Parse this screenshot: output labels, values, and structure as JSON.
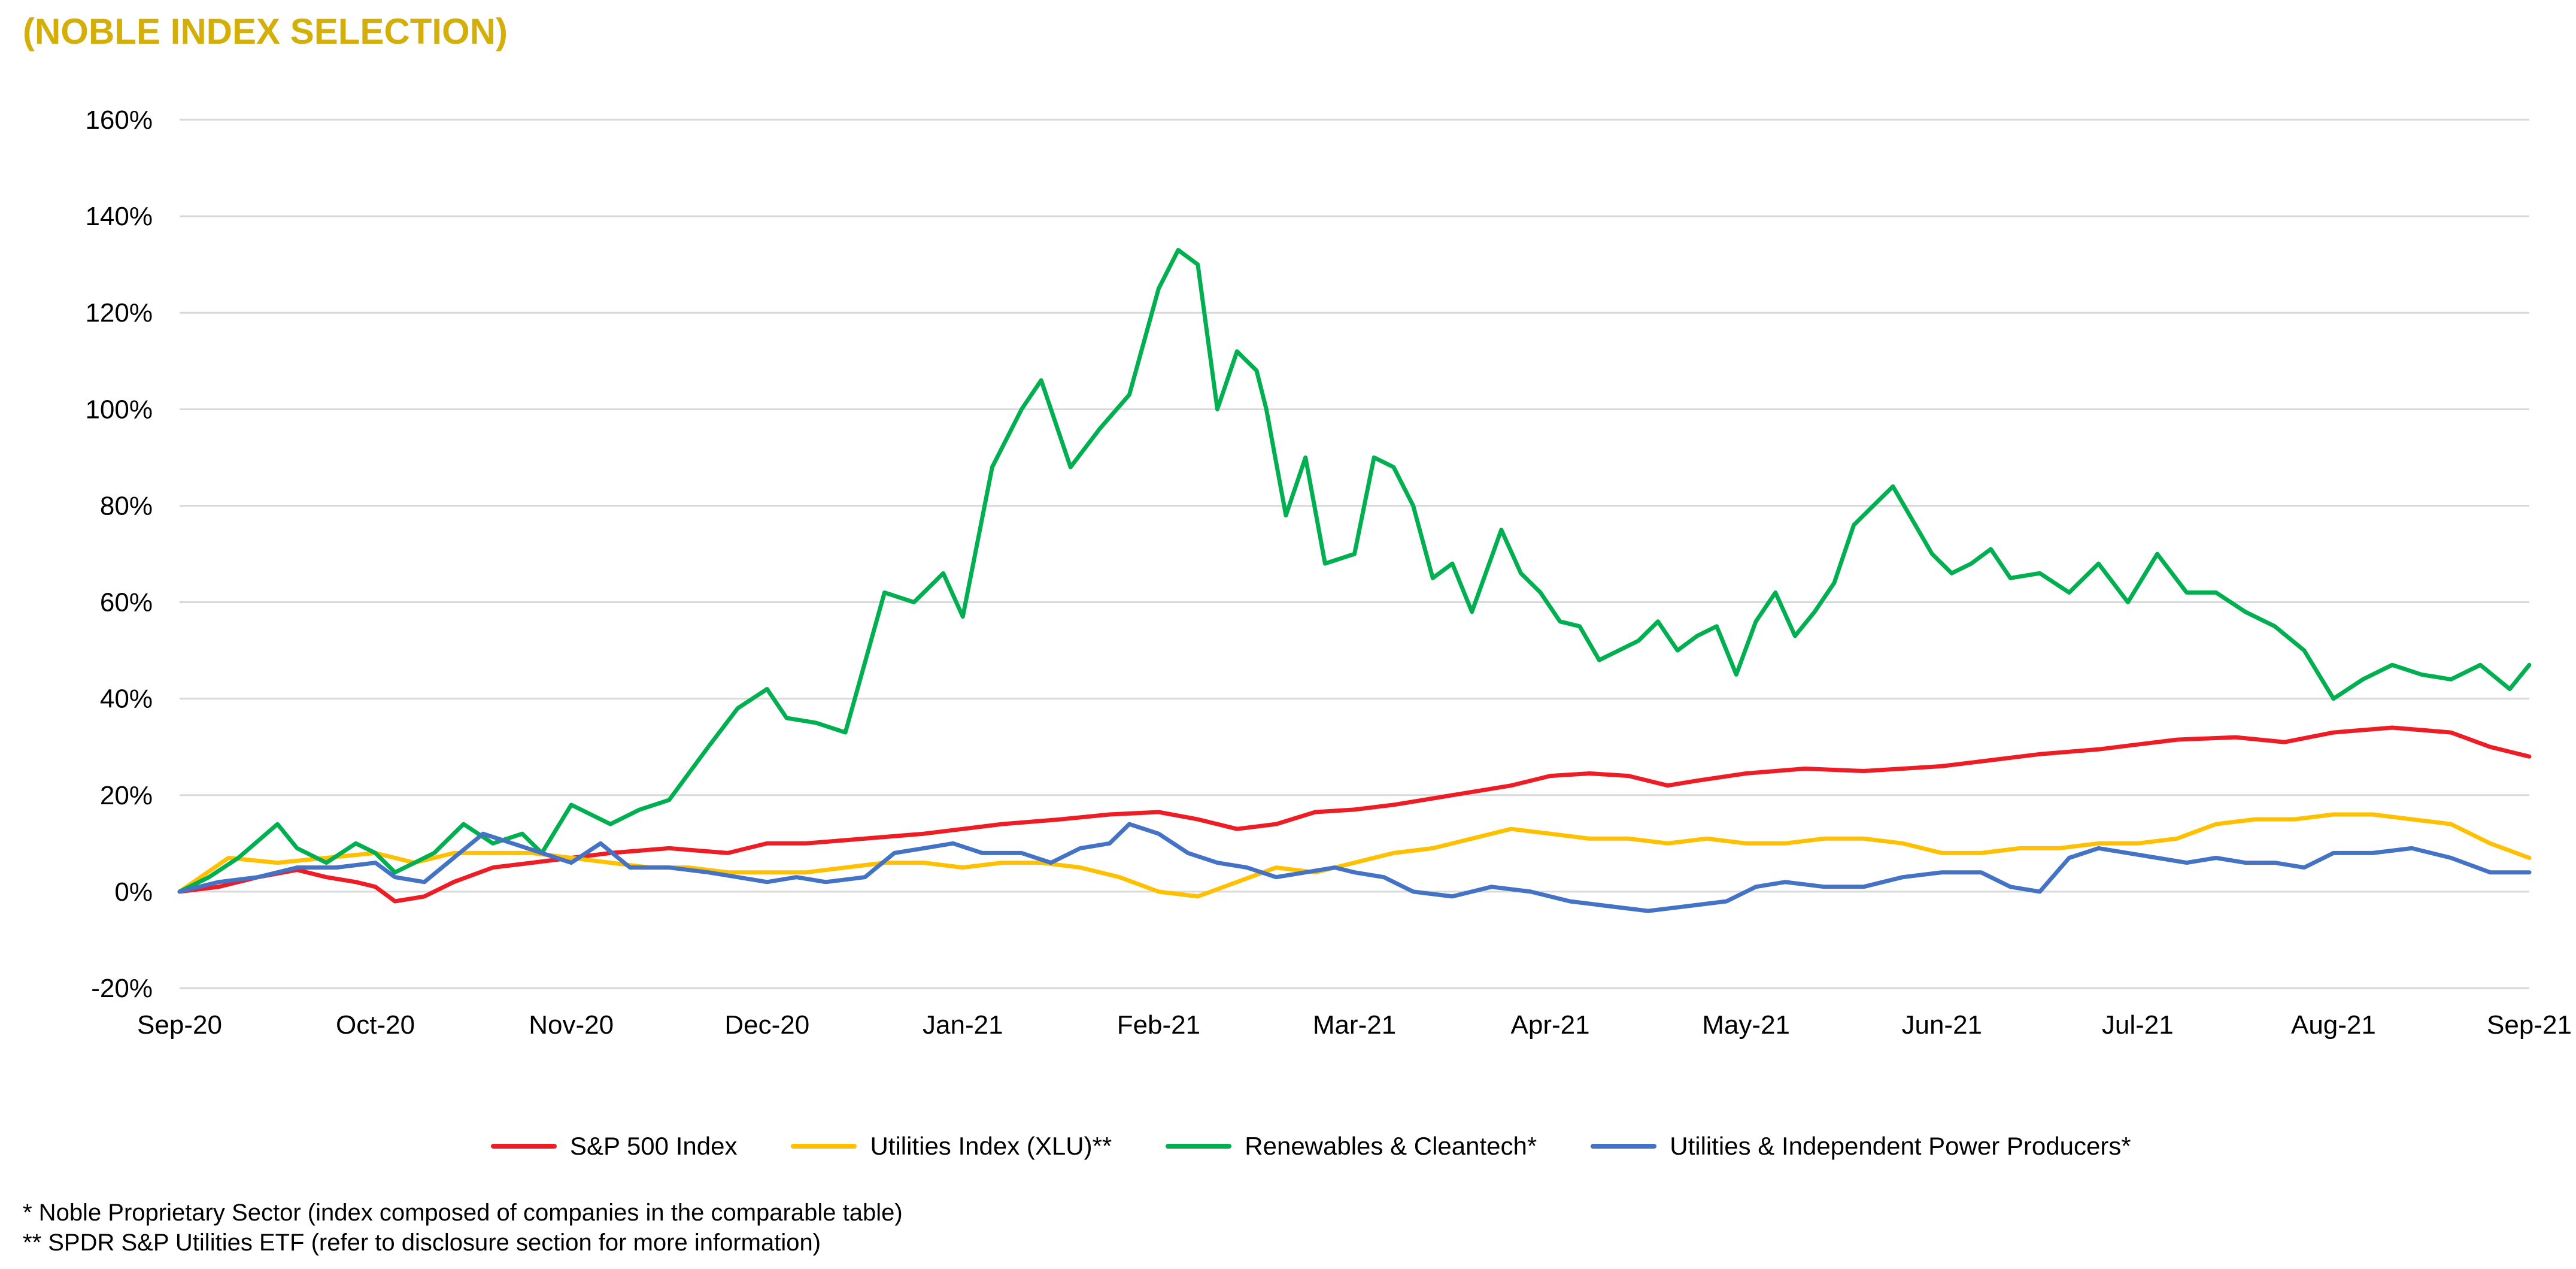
{
  "page": {
    "title": "(NOBLE INDEX SELECTION)",
    "footnotes": [
      "* Noble Proprietary Sector (index composed of companies in the comparable table)",
      "** SPDR S&P Utilities ETF (refer to disclosure section for more information)"
    ]
  },
  "colors": {
    "title": "#D4AF0A",
    "sp500": "#EE1C25",
    "xlu": "#FFC000",
    "renewables": "#00B050",
    "ipp": "#4472C4",
    "grid": "#D9D9D9"
  },
  "chart_data": {
    "type": "line",
    "title": "",
    "xlabel": "",
    "ylabel": "",
    "ylim": [
      -20,
      160
    ],
    "yticks": [
      -20,
      0,
      20,
      40,
      60,
      80,
      100,
      120,
      140,
      160
    ],
    "ytick_labels": [
      "-20%",
      "0%",
      "20%",
      "40%",
      "60%",
      "80%",
      "100%",
      "120%",
      "140%",
      "160%"
    ],
    "x_unit": "months since Sep-20 (Sep-20 = 0)",
    "xlim": [
      0,
      12
    ],
    "xticks": [
      0,
      1,
      2,
      3,
      4,
      5,
      6,
      7,
      8,
      9,
      10,
      11,
      12
    ],
    "xtick_labels": [
      "Sep-20",
      "Oct-20",
      "Nov-20",
      "Dec-20",
      "Jan-21",
      "Feb-21",
      "Mar-21",
      "Apr-21",
      "May-21",
      "Jun-21",
      "Jul-21",
      "Aug-21",
      "Sep-21"
    ],
    "grid": "horizontal",
    "legend_position": "bottom",
    "series": [
      {
        "name": "S&P 500 Index",
        "color_key": "sp500",
        "points": [
          [
            0,
            0
          ],
          [
            0.2,
            1
          ],
          [
            0.4,
            3
          ],
          [
            0.6,
            4.5
          ],
          [
            0.75,
            3
          ],
          [
            0.9,
            2
          ],
          [
            1,
            1
          ],
          [
            1.1,
            -2
          ],
          [
            1.25,
            -1
          ],
          [
            1.4,
            2
          ],
          [
            1.6,
            5
          ],
          [
            1.8,
            6
          ],
          [
            2,
            7
          ],
          [
            2.2,
            8
          ],
          [
            2.5,
            9
          ],
          [
            2.8,
            8
          ],
          [
            3,
            10
          ],
          [
            3.2,
            10
          ],
          [
            3.5,
            11
          ],
          [
            3.8,
            12
          ],
          [
            4,
            13
          ],
          [
            4.2,
            14
          ],
          [
            4.5,
            15
          ],
          [
            4.75,
            16
          ],
          [
            5,
            16.5
          ],
          [
            5.2,
            15
          ],
          [
            5.4,
            13
          ],
          [
            5.6,
            14
          ],
          [
            5.8,
            16.5
          ],
          [
            6,
            17
          ],
          [
            6.2,
            18
          ],
          [
            6.5,
            20
          ],
          [
            6.8,
            22
          ],
          [
            7,
            24
          ],
          [
            7.2,
            24.5
          ],
          [
            7.4,
            24
          ],
          [
            7.6,
            22
          ],
          [
            7.75,
            23
          ],
          [
            8,
            24.5
          ],
          [
            8.3,
            25.5
          ],
          [
            8.6,
            25
          ],
          [
            8.8,
            25.5
          ],
          [
            9,
            26
          ],
          [
            9.2,
            27
          ],
          [
            9.5,
            28.5
          ],
          [
            9.8,
            29.5
          ],
          [
            10,
            30.5
          ],
          [
            10.2,
            31.5
          ],
          [
            10.5,
            32
          ],
          [
            10.75,
            31
          ],
          [
            11,
            33
          ],
          [
            11.3,
            34
          ],
          [
            11.6,
            33
          ],
          [
            11.8,
            30
          ],
          [
            12,
            28
          ]
        ]
      },
      {
        "name": "Utilities Index (XLU)**",
        "color_key": "xlu",
        "points": [
          [
            0,
            0
          ],
          [
            0.25,
            7
          ],
          [
            0.5,
            6
          ],
          [
            0.75,
            7
          ],
          [
            1,
            8
          ],
          [
            1.2,
            6
          ],
          [
            1.4,
            8
          ],
          [
            1.6,
            8
          ],
          [
            1.8,
            8
          ],
          [
            2,
            7
          ],
          [
            2.2,
            6
          ],
          [
            2.4,
            5
          ],
          [
            2.6,
            5
          ],
          [
            2.8,
            4
          ],
          [
            3,
            4
          ],
          [
            3.2,
            4
          ],
          [
            3.4,
            5
          ],
          [
            3.6,
            6
          ],
          [
            3.8,
            6
          ],
          [
            4,
            5
          ],
          [
            4.2,
            6
          ],
          [
            4.4,
            6
          ],
          [
            4.6,
            5
          ],
          [
            4.8,
            3
          ],
          [
            5,
            0
          ],
          [
            5.2,
            -1
          ],
          [
            5.4,
            2
          ],
          [
            5.6,
            5
          ],
          [
            5.8,
            4
          ],
          [
            6,
            6
          ],
          [
            6.2,
            8
          ],
          [
            6.4,
            9
          ],
          [
            6.6,
            11
          ],
          [
            6.8,
            13
          ],
          [
            7,
            12
          ],
          [
            7.2,
            11
          ],
          [
            7.4,
            11
          ],
          [
            7.6,
            10
          ],
          [
            7.8,
            11
          ],
          [
            8,
            10
          ],
          [
            8.2,
            10
          ],
          [
            8.4,
            11
          ],
          [
            8.6,
            11
          ],
          [
            8.8,
            10
          ],
          [
            9,
            8
          ],
          [
            9.2,
            8
          ],
          [
            9.4,
            9
          ],
          [
            9.6,
            9
          ],
          [
            9.8,
            10
          ],
          [
            10,
            10
          ],
          [
            10.2,
            11
          ],
          [
            10.4,
            14
          ],
          [
            10.6,
            15
          ],
          [
            10.8,
            15
          ],
          [
            11,
            16
          ],
          [
            11.2,
            16
          ],
          [
            11.4,
            15
          ],
          [
            11.6,
            14
          ],
          [
            11.8,
            10
          ],
          [
            12,
            7
          ]
        ]
      },
      {
        "name": "Renewables & Cleantech*",
        "color_key": "renewables",
        "points": [
          [
            0,
            0
          ],
          [
            0.15,
            3
          ],
          [
            0.3,
            7
          ],
          [
            0.5,
            14
          ],
          [
            0.6,
            9
          ],
          [
            0.75,
            6
          ],
          [
            0.9,
            10
          ],
          [
            1,
            8
          ],
          [
            1.1,
            4
          ],
          [
            1.2,
            6
          ],
          [
            1.3,
            8
          ],
          [
            1.45,
            14
          ],
          [
            1.6,
            10
          ],
          [
            1.75,
            12
          ],
          [
            1.85,
            8
          ],
          [
            2,
            18
          ],
          [
            2.2,
            14
          ],
          [
            2.35,
            17
          ],
          [
            2.5,
            19
          ],
          [
            2.7,
            30
          ],
          [
            2.85,
            38
          ],
          [
            3,
            42
          ],
          [
            3.1,
            36
          ],
          [
            3.25,
            35
          ],
          [
            3.4,
            33
          ],
          [
            3.6,
            62
          ],
          [
            3.75,
            60
          ],
          [
            3.9,
            66
          ],
          [
            4,
            57
          ],
          [
            4.15,
            88
          ],
          [
            4.3,
            100
          ],
          [
            4.4,
            106
          ],
          [
            4.55,
            88
          ],
          [
            4.7,
            96
          ],
          [
            4.85,
            103
          ],
          [
            5,
            125
          ],
          [
            5.1,
            133
          ],
          [
            5.2,
            130
          ],
          [
            5.3,
            100
          ],
          [
            5.4,
            112
          ],
          [
            5.5,
            108
          ],
          [
            5.55,
            100
          ],
          [
            5.65,
            78
          ],
          [
            5.75,
            90
          ],
          [
            5.85,
            68
          ],
          [
            6,
            70
          ],
          [
            6.1,
            90
          ],
          [
            6.2,
            88
          ],
          [
            6.3,
            80
          ],
          [
            6.4,
            65
          ],
          [
            6.5,
            68
          ],
          [
            6.6,
            58
          ],
          [
            6.75,
            75
          ],
          [
            6.85,
            66
          ],
          [
            6.95,
            62
          ],
          [
            7.05,
            56
          ],
          [
            7.15,
            55
          ],
          [
            7.25,
            48
          ],
          [
            7.35,
            50
          ],
          [
            7.45,
            52
          ],
          [
            7.55,
            56
          ],
          [
            7.65,
            50
          ],
          [
            7.75,
            53
          ],
          [
            7.85,
            55
          ],
          [
            7.95,
            45
          ],
          [
            8.05,
            56
          ],
          [
            8.15,
            62
          ],
          [
            8.25,
            53
          ],
          [
            8.35,
            58
          ],
          [
            8.45,
            64
          ],
          [
            8.55,
            76
          ],
          [
            8.65,
            80
          ],
          [
            8.75,
            84
          ],
          [
            8.85,
            77
          ],
          [
            8.95,
            70
          ],
          [
            9.05,
            66
          ],
          [
            9.15,
            68
          ],
          [
            9.25,
            71
          ],
          [
            9.35,
            65
          ],
          [
            9.5,
            66
          ],
          [
            9.65,
            62
          ],
          [
            9.8,
            68
          ],
          [
            9.95,
            60
          ],
          [
            10.1,
            70
          ],
          [
            10.25,
            62
          ],
          [
            10.4,
            62
          ],
          [
            10.55,
            58
          ],
          [
            10.7,
            55
          ],
          [
            10.85,
            50
          ],
          [
            11,
            40
          ],
          [
            11.15,
            44
          ],
          [
            11.3,
            47
          ],
          [
            11.45,
            45
          ],
          [
            11.6,
            44
          ],
          [
            11.75,
            47
          ],
          [
            11.9,
            42
          ],
          [
            12,
            47
          ]
        ]
      },
      {
        "name": "Utilities & Independent Power Producers*",
        "color_key": "ipp",
        "points": [
          [
            0,
            0
          ],
          [
            0.2,
            2
          ],
          [
            0.4,
            3
          ],
          [
            0.6,
            5
          ],
          [
            0.8,
            5
          ],
          [
            1,
            6
          ],
          [
            1.1,
            3
          ],
          [
            1.25,
            2
          ],
          [
            1.4,
            7
          ],
          [
            1.55,
            12
          ],
          [
            1.7,
            10
          ],
          [
            1.85,
            8
          ],
          [
            2,
            6
          ],
          [
            2.15,
            10
          ],
          [
            2.3,
            5
          ],
          [
            2.5,
            5
          ],
          [
            2.7,
            4
          ],
          [
            2.85,
            3
          ],
          [
            3,
            2
          ],
          [
            3.15,
            3
          ],
          [
            3.3,
            2
          ],
          [
            3.5,
            3
          ],
          [
            3.65,
            8
          ],
          [
            3.8,
            9
          ],
          [
            3.95,
            10
          ],
          [
            4.1,
            8
          ],
          [
            4.3,
            8
          ],
          [
            4.45,
            6
          ],
          [
            4.6,
            9
          ],
          [
            4.75,
            10
          ],
          [
            4.85,
            14
          ],
          [
            5,
            12
          ],
          [
            5.15,
            8
          ],
          [
            5.3,
            6
          ],
          [
            5.45,
            5
          ],
          [
            5.6,
            3
          ],
          [
            5.75,
            4
          ],
          [
            5.9,
            5
          ],
          [
            6,
            4
          ],
          [
            6.15,
            3
          ],
          [
            6.3,
            0
          ],
          [
            6.5,
            -1
          ],
          [
            6.7,
            1
          ],
          [
            6.9,
            0
          ],
          [
            7.1,
            -2
          ],
          [
            7.3,
            -3
          ],
          [
            7.5,
            -4
          ],
          [
            7.7,
            -3
          ],
          [
            7.9,
            -2
          ],
          [
            8.05,
            1
          ],
          [
            8.2,
            2
          ],
          [
            8.4,
            1
          ],
          [
            8.6,
            1
          ],
          [
            8.8,
            3
          ],
          [
            9,
            4
          ],
          [
            9.2,
            4
          ],
          [
            9.35,
            1
          ],
          [
            9.5,
            0
          ],
          [
            9.65,
            7
          ],
          [
            9.8,
            9
          ],
          [
            9.95,
            8
          ],
          [
            10.1,
            7
          ],
          [
            10.25,
            6
          ],
          [
            10.4,
            7
          ],
          [
            10.55,
            6
          ],
          [
            10.7,
            6
          ],
          [
            10.85,
            5
          ],
          [
            11,
            8
          ],
          [
            11.2,
            8
          ],
          [
            11.4,
            9
          ],
          [
            11.6,
            7
          ],
          [
            11.8,
            4
          ],
          [
            12,
            4
          ]
        ]
      }
    ]
  }
}
